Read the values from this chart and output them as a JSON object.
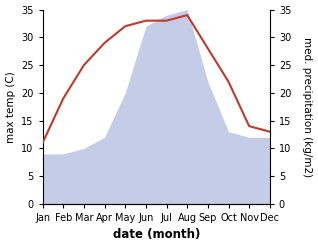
{
  "months": [
    "Jan",
    "Feb",
    "Mar",
    "Apr",
    "May",
    "Jun",
    "Jul",
    "Aug",
    "Sep",
    "Oct",
    "Nov",
    "Dec"
  ],
  "temperature": [
    11,
    19,
    25,
    29,
    32,
    33,
    33,
    34,
    28,
    22,
    14,
    13
  ],
  "precipitation": [
    9,
    9,
    10,
    12,
    20,
    32,
    34,
    35,
    22,
    13,
    12,
    12
  ],
  "temp_color": "#c0392b",
  "precip_fill_color": "#c5cce8",
  "precip_edge_color": "#b0b8e0",
  "background_color": "#ffffff",
  "ylabel_left": "max temp (C)",
  "ylabel_right": "med. precipitation (kg/m2)",
  "xlabel": "date (month)",
  "ylim_left": [
    0,
    35
  ],
  "ylim_right": [
    0,
    35
  ],
  "yticks": [
    0,
    5,
    10,
    15,
    20,
    25,
    30,
    35
  ],
  "label_fontsize": 7.5,
  "tick_fontsize": 7.0,
  "xlabel_fontsize": 8.5
}
